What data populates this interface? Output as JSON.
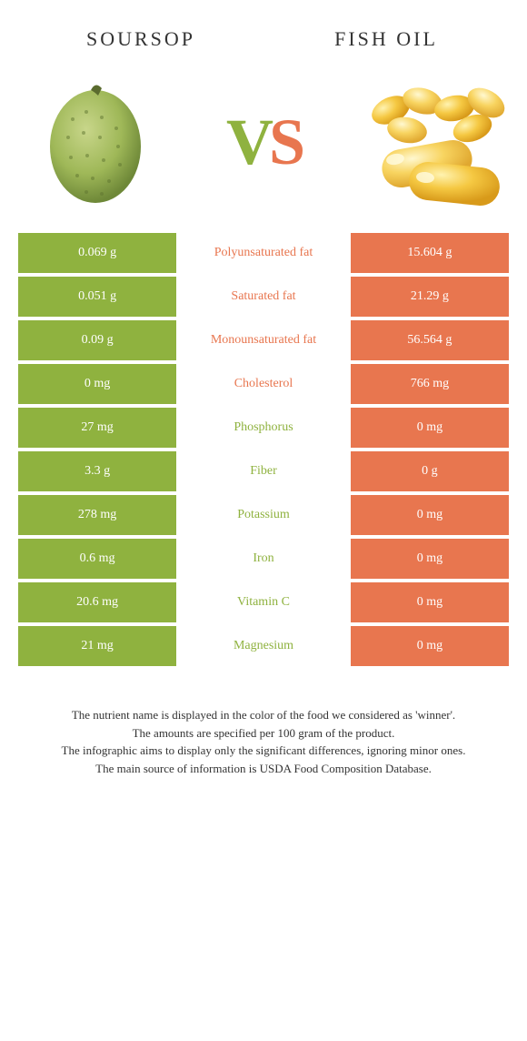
{
  "header": {
    "left_title": "SOURSOP",
    "right_title": "FISH OIL"
  },
  "vs": {
    "v": "V",
    "s": "S"
  },
  "colors": {
    "left_bg": "#8fb23f",
    "right_bg": "#e8764f",
    "left_text": "#8fb23f",
    "right_text": "#e8764f",
    "cell_text": "#ffffff"
  },
  "rows": [
    {
      "left": "0.069 g",
      "label": "Polyunsaturated fat",
      "right": "15.604 g",
      "winner": "right"
    },
    {
      "left": "0.051 g",
      "label": "Saturated fat",
      "right": "21.29 g",
      "winner": "right"
    },
    {
      "left": "0.09 g",
      "label": "Monounsaturated fat",
      "right": "56.564 g",
      "winner": "right"
    },
    {
      "left": "0 mg",
      "label": "Cholesterol",
      "right": "766 mg",
      "winner": "right"
    },
    {
      "left": "27 mg",
      "label": "Phosphorus",
      "right": "0 mg",
      "winner": "left"
    },
    {
      "left": "3.3 g",
      "label": "Fiber",
      "right": "0 g",
      "winner": "left"
    },
    {
      "left": "278 mg",
      "label": "Potassium",
      "right": "0 mg",
      "winner": "left"
    },
    {
      "left": "0.6 mg",
      "label": "Iron",
      "right": "0 mg",
      "winner": "left"
    },
    {
      "left": "20.6 mg",
      "label": "Vitamin C",
      "right": "0 mg",
      "winner": "left"
    },
    {
      "left": "21 mg",
      "label": "Magnesium",
      "right": "0 mg",
      "winner": "left"
    }
  ],
  "footer": {
    "line1": "The nutrient name is displayed in the color of the food we considered as 'winner'.",
    "line2": "The amounts are specified per 100 gram of the product.",
    "line3": "The infographic aims to display only the significant differences, ignoring minor ones.",
    "line4": "The main source of information is USDA Food Composition Database."
  }
}
